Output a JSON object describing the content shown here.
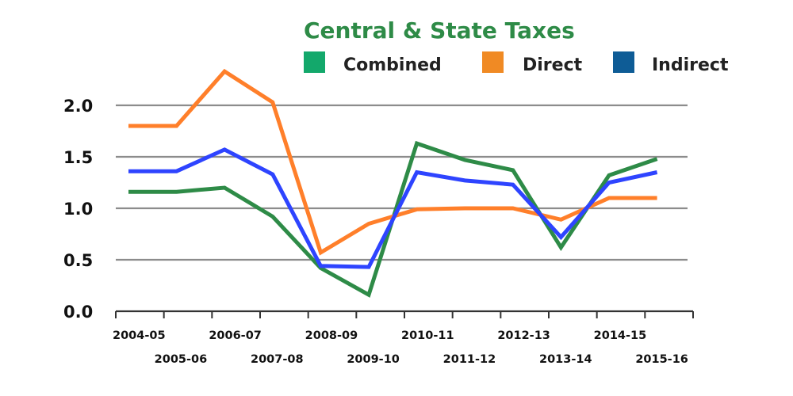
{
  "chart_data": {
    "type": "line",
    "title": "Central & State Taxes",
    "xlabel": "",
    "ylabel": "",
    "ylim": [
      0,
      2.0
    ],
    "yticks": [
      "0.0",
      "0.5",
      "1.0",
      "1.5",
      "2.0"
    ],
    "ytick_values": [
      0,
      0.5,
      1.0,
      1.5,
      2.0
    ],
    "grid": true,
    "legend_position": "top-right",
    "categories": [
      "2004-05",
      "2005-06",
      "2006-07",
      "2007-08",
      "2008-09",
      "2009-10",
      "2010-11",
      "2011-12",
      "2012-13",
      "2013-14",
      "2014-15",
      "2015-16"
    ],
    "series": [
      {
        "name": "Combined",
        "legend_color": "#13a86b",
        "line_color": "#2e8b47",
        "values": [
          1.16,
          1.16,
          1.2,
          0.92,
          0.42,
          0.16,
          1.63,
          1.47,
          1.37,
          0.62,
          1.32,
          1.48
        ]
      },
      {
        "name": "Direct",
        "legend_color": "#f08a24",
        "line_color": "#ff7f2a",
        "values": [
          1.8,
          1.8,
          2.33,
          2.03,
          0.57,
          0.85,
          0.99,
          1.0,
          1.0,
          0.89,
          1.1,
          1.1
        ]
      },
      {
        "name": "Indirect",
        "legend_color": "#0e5c96",
        "line_color": "#2e44ff",
        "values": [
          1.36,
          1.36,
          1.57,
          1.33,
          0.44,
          0.43,
          1.35,
          1.27,
          1.23,
          0.72,
          1.25,
          1.35
        ]
      }
    ]
  },
  "colors": {
    "title": "#2e8b47",
    "grid": "#8c8c8c",
    "axis": "#333333"
  }
}
